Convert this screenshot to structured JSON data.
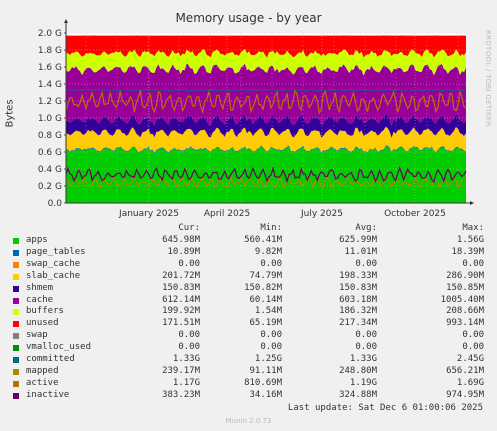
{
  "chart_data": {
    "type": "area",
    "title": "Memory usage - by year",
    "ylabel": "Bytes",
    "ylim": [
      0,
      2.0
    ],
    "y_unit": "G",
    "y_ticks": [
      "0.0",
      "0.2 G",
      "0.4 G",
      "0.6 G",
      "0.8 G",
      "1.0 G",
      "1.2 G",
      "1.4 G",
      "1.6 G",
      "1.8 G",
      "2.0 G"
    ],
    "x_ticks": [
      "January 2025",
      "April 2025",
      "July 2025",
      "October 2025"
    ],
    "grid": true,
    "stacked_series": [
      {
        "name": "apps",
        "color": "#00cc00",
        "approx_G": 0.63
      },
      {
        "name": "page_tables",
        "color": "#0066b3",
        "approx_G": 0.011
      },
      {
        "name": "swap_cache",
        "color": "#ff8000",
        "approx_G": 0.0
      },
      {
        "name": "slab_cache",
        "color": "#ffcc00",
        "approx_G": 0.2
      },
      {
        "name": "shmem",
        "color": "#330099",
        "approx_G": 0.15
      },
      {
        "name": "cache",
        "color": "#990099",
        "approx_G": 0.6
      },
      {
        "name": "buffers",
        "color": "#ccff00",
        "approx_G": 0.19
      },
      {
        "name": "unused",
        "color": "#ff0000",
        "approx_G": 0.21
      }
    ],
    "line_series": [
      {
        "name": "committed",
        "color": "#006b80",
        "approx_G": 1.33
      },
      {
        "name": "mapped",
        "color": "#b38600",
        "approx_G": 0.24
      },
      {
        "name": "active",
        "color": "#b37300",
        "approx_G": 1.19
      },
      {
        "name": "inactive",
        "color": "#660066",
        "approx_G": 0.33
      }
    ]
  },
  "side_text": "RRDTOOL / TOBI OETIKER",
  "legend": {
    "headers": {
      "cur": "Cur:",
      "min": "Min:",
      "avg": "Avg:",
      "max": "Max:"
    },
    "rows": [
      {
        "name": "apps",
        "color": "#00cc00",
        "cur": "645.98M",
        "min": "560.41M",
        "avg": "625.99M",
        "max": "1.56G"
      },
      {
        "name": "page_tables",
        "color": "#0066b3",
        "cur": "10.89M",
        "min": "9.82M",
        "avg": "11.01M",
        "max": "18.39M"
      },
      {
        "name": "swap_cache",
        "color": "#ff8000",
        "cur": "0.00",
        "min": "0.00",
        "avg": "0.00",
        "max": "0.00"
      },
      {
        "name": "slab_cache",
        "color": "#ffcc00",
        "cur": "201.72M",
        "min": "74.79M",
        "avg": "198.33M",
        "max": "286.90M"
      },
      {
        "name": "shmem",
        "color": "#330099",
        "cur": "150.83M",
        "min": "150.82M",
        "avg": "150.83M",
        "max": "150.85M"
      },
      {
        "name": "cache",
        "color": "#990099",
        "cur": "612.14M",
        "min": "60.14M",
        "avg": "603.18M",
        "max": "1005.40M"
      },
      {
        "name": "buffers",
        "color": "#ccff00",
        "cur": "199.92M",
        "min": "1.54M",
        "avg": "186.32M",
        "max": "208.66M"
      },
      {
        "name": "unused",
        "color": "#ff0000",
        "cur": "171.51M",
        "min": "65.19M",
        "avg": "217.34M",
        "max": "993.14M"
      },
      {
        "name": "swap",
        "color": "#808080",
        "cur": "0.00",
        "min": "0.00",
        "avg": "0.00",
        "max": "0.00"
      },
      {
        "name": "vmalloc_used",
        "color": "#008f00",
        "cur": "0.00",
        "min": "0.00",
        "avg": "0.00",
        "max": "0.00"
      },
      {
        "name": "committed",
        "color": "#006b80",
        "cur": "1.33G",
        "min": "1.25G",
        "avg": "1.33G",
        "max": "2.45G"
      },
      {
        "name": "mapped",
        "color": "#b38600",
        "cur": "239.17M",
        "min": "91.11M",
        "avg": "248.80M",
        "max": "656.21M"
      },
      {
        "name": "active",
        "color": "#b37300",
        "cur": "1.17G",
        "min": "810.69M",
        "avg": "1.19G",
        "max": "1.69G"
      },
      {
        "name": "inactive",
        "color": "#660066",
        "cur": "383.23M",
        "min": "34.16M",
        "avg": "324.88M",
        "max": "974.95M"
      }
    ]
  },
  "last_update": "Last update: Sat Dec  6 01:00:06 2025",
  "footer": "Munin 2.0.73"
}
